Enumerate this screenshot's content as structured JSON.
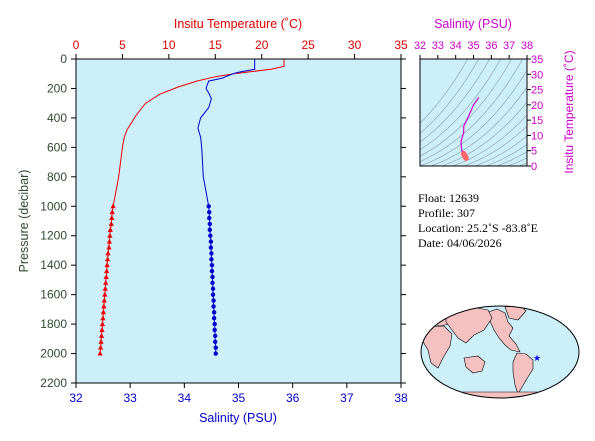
{
  "chart_data": [
    {
      "type": "line",
      "top_axis": {
        "label": "Insitu Temperature (˚C)",
        "range": [
          0,
          35
        ],
        "ticks": [
          "0",
          "5",
          "10",
          "15",
          "20",
          "25",
          "30",
          "35"
        ],
        "color": "#dd0000"
      },
      "bottom_axis": {
        "label": "Salinity (PSU)",
        "range": [
          32,
          38
        ],
        "ticks": [
          "32",
          "33",
          "34",
          "35",
          "36",
          "37",
          "38"
        ],
        "color": "#0000cc"
      },
      "left_axis": {
        "label": "Pressure (decibar)",
        "range": [
          0,
          2200
        ],
        "inverted": true,
        "ticks": [
          "0",
          "200",
          "400",
          "600",
          "800",
          "1000",
          "1200",
          "1400",
          "1600",
          "1800",
          "2000",
          "2200"
        ],
        "color": "#2e4a2e"
      },
      "background": "#cdeffa",
      "series": [
        {
          "axis": "temperature",
          "color": "#ee0000",
          "marker": "triangle",
          "line": [
            [
              22.4,
              0
            ],
            [
              22.4,
              50
            ],
            [
              21,
              70
            ],
            [
              19,
              85
            ],
            [
              17,
              100
            ],
            [
              15,
              120
            ],
            [
              13,
              150
            ],
            [
              11,
              190
            ],
            [
              9,
              240
            ],
            [
              7.5,
              300
            ],
            [
              6.5,
              380
            ],
            [
              5.5,
              480
            ],
            [
              5.2,
              530
            ],
            [
              5,
              600
            ],
            [
              4.6,
              800
            ],
            [
              4.3,
              900
            ],
            [
              4.0,
              1000
            ],
            [
              3.9,
              1040
            ],
            [
              3.85,
              1080
            ],
            [
              3.8,
              1120
            ],
            [
              3.7,
              1160
            ],
            [
              3.65,
              1200
            ],
            [
              3.6,
              1240
            ],
            [
              3.55,
              1280
            ],
            [
              3.45,
              1320
            ],
            [
              3.4,
              1360
            ],
            [
              3.35,
              1400
            ],
            [
              3.3,
              1440
            ],
            [
              3.25,
              1480
            ],
            [
              3.2,
              1520
            ],
            [
              3.15,
              1560
            ],
            [
              3.1,
              1600
            ],
            [
              3.05,
              1640
            ],
            [
              3.0,
              1680
            ],
            [
              2.95,
              1720
            ],
            [
              2.9,
              1760
            ],
            [
              2.85,
              1800
            ],
            [
              2.8,
              1840
            ],
            [
              2.75,
              1880
            ],
            [
              2.7,
              1920
            ],
            [
              2.65,
              1960
            ],
            [
              2.6,
              2000
            ]
          ],
          "markers": [
            [
              4.0,
              1000
            ],
            [
              3.9,
              1040
            ],
            [
              3.85,
              1080
            ],
            [
              3.8,
              1120
            ],
            [
              3.7,
              1160
            ],
            [
              3.65,
              1200
            ],
            [
              3.6,
              1240
            ],
            [
              3.55,
              1280
            ],
            [
              3.45,
              1320
            ],
            [
              3.4,
              1360
            ],
            [
              3.35,
              1400
            ],
            [
              3.3,
              1440
            ],
            [
              3.25,
              1480
            ],
            [
              3.2,
              1520
            ],
            [
              3.15,
              1560
            ],
            [
              3.1,
              1600
            ],
            [
              3.05,
              1640
            ],
            [
              3.0,
              1680
            ],
            [
              2.95,
              1720
            ],
            [
              2.9,
              1760
            ],
            [
              2.85,
              1800
            ],
            [
              2.8,
              1840
            ],
            [
              2.75,
              1880
            ],
            [
              2.7,
              1920
            ],
            [
              2.65,
              1960
            ],
            [
              2.6,
              2000
            ]
          ]
        },
        {
          "axis": "salinity",
          "color": "#0000cc",
          "marker": "circle",
          "line": [
            [
              35.3,
              0
            ],
            [
              35.3,
              70
            ],
            [
              35.0,
              90
            ],
            [
              34.9,
              100
            ],
            [
              34.7,
              130
            ],
            [
              34.45,
              150
            ],
            [
              34.4,
              200
            ],
            [
              34.45,
              230
            ],
            [
              34.5,
              270
            ],
            [
              34.45,
              330
            ],
            [
              34.3,
              400
            ],
            [
              34.25,
              470
            ],
            [
              34.3,
              530
            ],
            [
              34.32,
              600
            ],
            [
              34.35,
              800
            ],
            [
              34.4,
              900
            ],
            [
              34.45,
              1000
            ],
            [
              34.46,
              1040
            ],
            [
              34.46,
              1080
            ],
            [
              34.47,
              1120
            ],
            [
              34.47,
              1160
            ],
            [
              34.48,
              1200
            ],
            [
              34.49,
              1240
            ],
            [
              34.49,
              1280
            ],
            [
              34.5,
              1320
            ],
            [
              34.5,
              1360
            ],
            [
              34.51,
              1400
            ],
            [
              34.51,
              1440
            ],
            [
              34.52,
              1480
            ],
            [
              34.52,
              1520
            ],
            [
              34.53,
              1560
            ],
            [
              34.53,
              1600
            ],
            [
              34.54,
              1640
            ],
            [
              34.54,
              1680
            ],
            [
              34.55,
              1720
            ],
            [
              34.55,
              1760
            ],
            [
              34.56,
              1800
            ],
            [
              34.56,
              1840
            ],
            [
              34.57,
              1880
            ],
            [
              34.57,
              1920
            ],
            [
              34.58,
              1960
            ],
            [
              34.58,
              2000
            ]
          ],
          "markers": [
            [
              34.45,
              1000
            ],
            [
              34.46,
              1040
            ],
            [
              34.46,
              1080
            ],
            [
              34.47,
              1120
            ],
            [
              34.47,
              1160
            ],
            [
              34.48,
              1200
            ],
            [
              34.49,
              1240
            ],
            [
              34.49,
              1280
            ],
            [
              34.5,
              1320
            ],
            [
              34.5,
              1360
            ],
            [
              34.51,
              1400
            ],
            [
              34.51,
              1440
            ],
            [
              34.52,
              1480
            ],
            [
              34.52,
              1520
            ],
            [
              34.53,
              1560
            ],
            [
              34.53,
              1600
            ],
            [
              34.54,
              1640
            ],
            [
              34.54,
              1680
            ],
            [
              34.55,
              1720
            ],
            [
              34.55,
              1760
            ],
            [
              34.56,
              1800
            ],
            [
              34.56,
              1840
            ],
            [
              34.57,
              1880
            ],
            [
              34.57,
              1920
            ],
            [
              34.58,
              1960
            ],
            [
              34.58,
              2000
            ]
          ]
        }
      ]
    },
    {
      "type": "scatter",
      "top_axis": {
        "label": "Salinity (PSU)",
        "range": [
          32,
          38
        ],
        "ticks": [
          "32",
          "33",
          "34",
          "35",
          "36",
          "37",
          "38"
        ],
        "color": "#cc00cc"
      },
      "right_axis": {
        "label": "Insitu Temperature (˚C)",
        "range": [
          0,
          35
        ],
        "ticks": [
          "0",
          "5",
          "10",
          "15",
          "20",
          "25",
          "30",
          "35"
        ],
        "color": "#cc00cc"
      },
      "background": "#cdeffa",
      "contours": "density isolines (gray)",
      "series": [
        {
          "color": "#cc00cc",
          "points": [
            [
              35.3,
              22.4
            ],
            [
              35.0,
              20
            ],
            [
              34.7,
              16
            ],
            [
              34.45,
              13
            ],
            [
              34.45,
              11
            ],
            [
              34.3,
              8
            ],
            [
              34.32,
              6
            ],
            [
              34.35,
              5
            ],
            [
              34.4,
              4.6
            ],
            [
              34.45,
              4
            ],
            [
              34.5,
              3.4
            ],
            [
              34.55,
              2.9
            ],
            [
              34.58,
              2.6
            ]
          ]
        },
        {
          "color": "#ff6666",
          "points": [
            [
              34.45,
              4
            ],
            [
              34.5,
              3.4
            ],
            [
              34.55,
              2.9
            ],
            [
              34.58,
              2.6
            ]
          ]
        }
      ]
    }
  ],
  "info": {
    "float": "Float:  12639",
    "profile": "Profile:  307",
    "location": "Location:  25.2˚S  -83.8˚E",
    "date": "Date:  04/06/2026"
  },
  "map": {
    "ocean_color": "#cdeffa",
    "land_color": "#f4c0c0",
    "marker_color": "#0000ff",
    "marker": "star"
  }
}
